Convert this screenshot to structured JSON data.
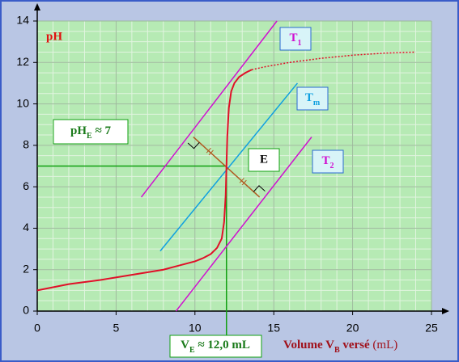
{
  "chart_data": {
    "type": "line",
    "ylabel": "pH",
    "xlabel": [
      {
        "text": "Volume V"
      },
      {
        "text": "B",
        "sub": true
      },
      {
        "text": " versé"
      },
      {
        "text": " (mL)",
        "normal": true
      }
    ],
    "xlim": [
      0,
      25
    ],
    "ylim": [
      0,
      14
    ],
    "xticks": [
      0,
      5,
      10,
      15,
      20,
      25
    ],
    "yticks": [
      0,
      2,
      4,
      6,
      8,
      10,
      12,
      14
    ],
    "grid": true,
    "xgrid_step": 1,
    "ygrid_step": 0.5,
    "series": [
      {
        "color": "#e01028",
        "style": "solid",
        "x": [
          0,
          2,
          4,
          6,
          8,
          9,
          10,
          10.5,
          11,
          11.4,
          11.7,
          11.85,
          11.95,
          12,
          12.05,
          12.15,
          12.3,
          12.5,
          12.8,
          13.2,
          13.6
        ],
        "values": [
          1.0,
          1.3,
          1.5,
          1.75,
          2.0,
          2.2,
          2.4,
          2.55,
          2.75,
          3.05,
          3.5,
          4.3,
          5.6,
          7.0,
          8.4,
          9.8,
          10.6,
          11.0,
          11.3,
          11.5,
          11.65
        ]
      },
      {
        "color": "#e01028",
        "style": "dotted",
        "x": [
          13.6,
          14.5,
          16,
          18,
          20,
          22,
          24
        ],
        "values": [
          11.65,
          11.8,
          12.0,
          12.2,
          12.35,
          12.45,
          12.5
        ]
      }
    ],
    "lines": [
      {
        "label": [
          {
            "text": "T"
          },
          {
            "text": "1",
            "sub": true
          }
        ],
        "color": "#d010d0",
        "x": [
          6.6,
          15.2
        ],
        "values": [
          5.5,
          14
        ]
      },
      {
        "label": [
          {
            "text": "T"
          },
          {
            "text": "m",
            "sub": true
          }
        ],
        "color": "#10a0e0",
        "x": [
          7.8,
          16.5
        ],
        "values": [
          2.9,
          11.0
        ]
      },
      {
        "label": [
          {
            "text": "T"
          },
          {
            "text": "2",
            "sub": true
          }
        ],
        "color": "#d010d0",
        "x": [
          8.8,
          17.4
        ],
        "values": [
          0,
          8.4
        ]
      }
    ],
    "perpendicular": {
      "color": "#b05a20",
      "x": [
        9.9,
        14.1
      ],
      "values": [
        8.4,
        5.5
      ]
    },
    "equivalence": {
      "label": "E",
      "x": 12,
      "y": 7,
      "color": "#10a010"
    },
    "ph_label": [
      {
        "text": "pH"
      },
      {
        "text": "E",
        "sub": true
      },
      {
        "text": " ≈ 7"
      }
    ],
    "v_label": [
      {
        "text": "V"
      },
      {
        "text": "E",
        "sub": true
      },
      {
        "text": " ≈ 12,0 mL"
      }
    ]
  }
}
